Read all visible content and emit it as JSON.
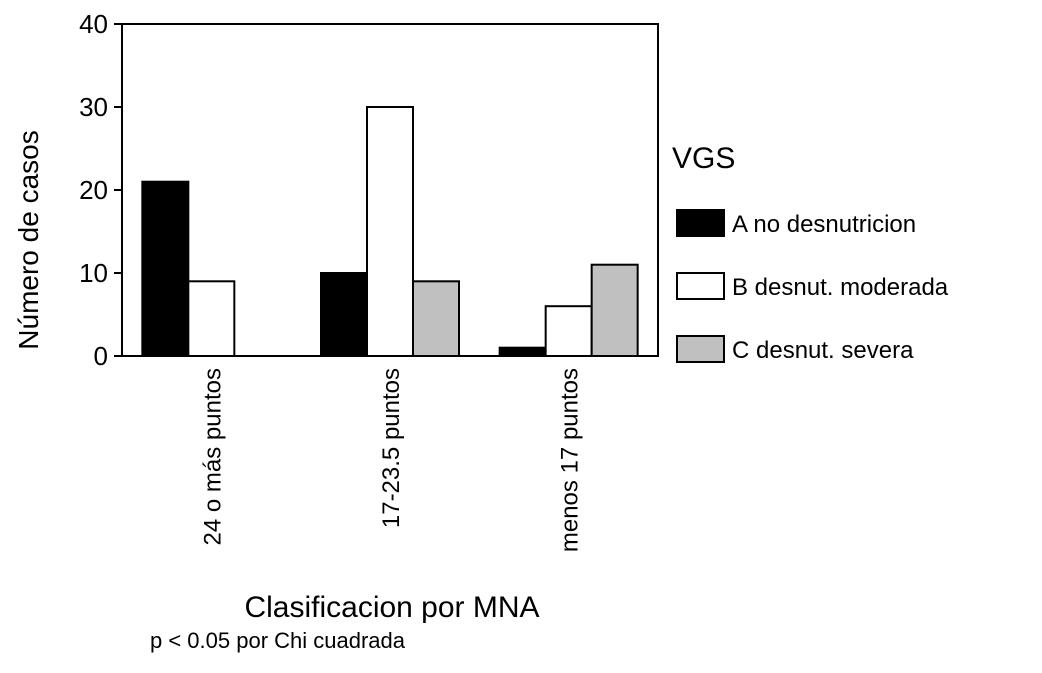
{
  "chart_data": {
    "type": "bar",
    "title": "",
    "xlabel": "Clasificacion por MNA",
    "ylabel": "Número de casos",
    "ylim": [
      0,
      40
    ],
    "yticks": [
      0,
      10,
      20,
      30,
      40
    ],
    "categories": [
      "24 o más puntos",
      "17-23.5 puntos",
      "menos 17 puntos"
    ],
    "legend_title": "VGS",
    "legend_position": "right",
    "series": [
      {
        "name": "A no desnutricion",
        "values": [
          21,
          10,
          1
        ],
        "color": "#000000"
      },
      {
        "name": "B desnut. moderada",
        "values": [
          9,
          30,
          6
        ],
        "color": "#ffffff"
      },
      {
        "name": "C desnut. severa",
        "values": [
          0,
          9,
          11
        ],
        "color": "#c0c0c0"
      }
    ]
  },
  "footnote": "p < 0.05 por Chi cuadrada"
}
